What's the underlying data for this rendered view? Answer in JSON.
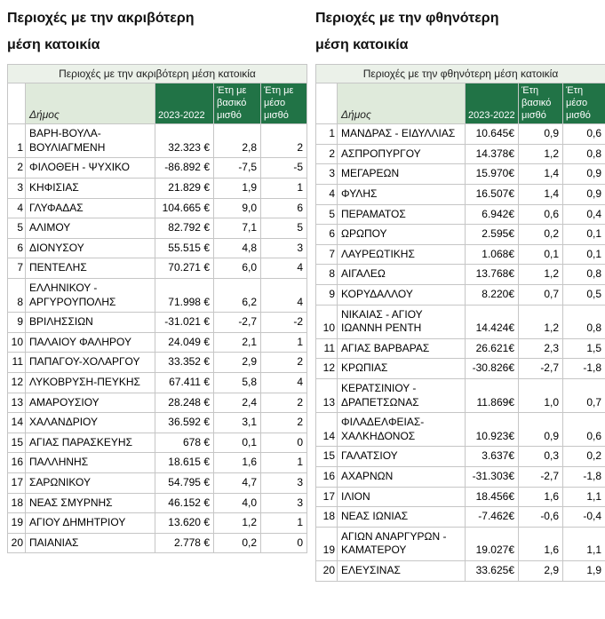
{
  "page": {
    "titles": [
      {
        "lines": [
          "Περιοχές με την ακριβότερη",
          "μέση κατοικία"
        ]
      },
      {
        "lines": [
          "Περιοχές με την φθηνότερη",
          "μέση κατοικία"
        ]
      }
    ]
  },
  "colors": {
    "header_green": "#217346",
    "light_green": "#ebf1e9",
    "dimos_green": "#dfeadb"
  },
  "chart_data": [
    {
      "type": "table",
      "title": "Περιοχές με την ακριβότερη μέση κατοικία",
      "columns": [
        "",
        "Δήμος",
        "2023-2022",
        "Έτη με βασικό μισθό",
        "Έτη με μέσο μισθό"
      ],
      "rows": [
        [
          "1",
          "ΒΑΡΗ-ΒΟΥΛΑ-ΒΟΥΛΙΑΓΜΕΝΗ",
          "32.323 €",
          "2,8",
          "2"
        ],
        [
          "2",
          "ΦΙΛΟΘΕΗ - ΨΥΧΙΚΟ",
          "-86.892 €",
          "-7,5",
          "-5"
        ],
        [
          "3",
          "ΚΗΦΙΣΙΑΣ",
          "21.829 €",
          "1,9",
          "1"
        ],
        [
          "4",
          "ΓΛΥΦΑΔΑΣ",
          "104.665 €",
          "9,0",
          "6"
        ],
        [
          "5",
          "ΑΛΙΜΟΥ",
          "82.792 €",
          "7,1",
          "5"
        ],
        [
          "6",
          "ΔΙΟΝΥΣΟΥ",
          "55.515 €",
          "4,8",
          "3"
        ],
        [
          "7",
          "ΠΕΝΤΕΛΗΣ",
          "70.271 €",
          "6,0",
          "4"
        ],
        [
          "8",
          "ΕΛΛΗΝΙΚΟΥ - ΑΡΓΥΡΟΥΠΟΛΗΣ",
          "71.998 €",
          "6,2",
          "4"
        ],
        [
          "9",
          "ΒΡΙΛΗΣΣΙΩΝ",
          "-31.021 €",
          "-2,7",
          "-2"
        ],
        [
          "10",
          "ΠΑΛΑΙΟΥ ΦΑΛΗΡΟΥ",
          "24.049 €",
          "2,1",
          "1"
        ],
        [
          "11",
          "ΠΑΠΑΓΟΥ-ΧΟΛΑΡΓΟΥ",
          "33.352 €",
          "2,9",
          "2"
        ],
        [
          "12",
          "ΛΥΚΟΒΡΥΣΗ-ΠΕΥΚΗΣ",
          "67.411 €",
          "5,8",
          "4"
        ],
        [
          "13",
          "ΑΜΑΡΟΥΣΙΟΥ",
          "28.248 €",
          "2,4",
          "2"
        ],
        [
          "14",
          "ΧΑΛΑΝΔΡΙΟΥ",
          "36.592 €",
          "3,1",
          "2"
        ],
        [
          "15",
          "ΑΓΙΑΣ ΠΑΡΑΣΚΕΥΗΣ",
          "678 €",
          "0,1",
          "0"
        ],
        [
          "16",
          "ΠΑΛΛΗΝΗΣ",
          "18.615 €",
          "1,6",
          "1"
        ],
        [
          "17",
          "ΣΑΡΩΝΙΚΟΥ",
          "54.795 €",
          "4,7",
          "3"
        ],
        [
          "18",
          "ΝΕΑΣ ΣΜΥΡΝΗΣ",
          "46.152 €",
          "4,0",
          "3"
        ],
        [
          "19",
          "ΑΓΙΟΥ ΔΗΜΗΤΡΙΟΥ",
          "13.620 €",
          "1,2",
          "1"
        ],
        [
          "20",
          "ΠΑΙΑΝΙΑΣ",
          "2.778 €",
          "0,2",
          "0"
        ]
      ]
    },
    {
      "type": "table",
      "title": "Περιοχές με την φθηνότερη μέση κατοικία",
      "columns": [
        "",
        "Δήμος",
        "2023-2022",
        "Έτη βασικό μισθό",
        "Έτη μέσο μισθό"
      ],
      "rows": [
        [
          "1",
          "ΜΑΝΔΡΑΣ - ΕΙΔΥΛΛΙΑΣ",
          "10.645€",
          "0,9",
          "0,6"
        ],
        [
          "2",
          "ΑΣΠΡΟΠΥΡΓΟΥ",
          "14.378€",
          "1,2",
          "0,8"
        ],
        [
          "3",
          "ΜΕΓΑΡΕΩΝ",
          "15.970€",
          "1,4",
          "0,9"
        ],
        [
          "4",
          "ΦΥΛΗΣ",
          "16.507€",
          "1,4",
          "0,9"
        ],
        [
          "5",
          "ΠΕΡΑΜΑΤΟΣ",
          "6.942€",
          "0,6",
          "0,4"
        ],
        [
          "6",
          "ΩΡΩΠΟΥ",
          "2.595€",
          "0,2",
          "0,1"
        ],
        [
          "7",
          "ΛΑΥΡΕΩΤΙΚΗΣ",
          "1.068€",
          "0,1",
          "0,1"
        ],
        [
          "8",
          "ΑΙΓΑΛΕΩ",
          "13.768€",
          "1,2",
          "0,8"
        ],
        [
          "9",
          "ΚΟΡΥΔΑΛΛΟΥ",
          "8.220€",
          "0,7",
          "0,5"
        ],
        [
          "10",
          "ΝΙΚΑΙΑΣ - ΑΓΙΟΥ ΙΩΑΝΝΗ ΡΕΝΤΗ",
          "14.424€",
          "1,2",
          "0,8"
        ],
        [
          "11",
          "ΑΓΙΑΣ ΒΑΡΒΑΡΑΣ",
          "26.621€",
          "2,3",
          "1,5"
        ],
        [
          "12",
          "ΚΡΩΠΙΑΣ",
          "-30.826€",
          "-2,7",
          "-1,8"
        ],
        [
          "13",
          "ΚΕΡΑΤΣΙΝΙΟΥ - ΔΡΑΠΕΤΣΩΝΑΣ",
          "11.869€",
          "1,0",
          "0,7"
        ],
        [
          "14",
          "ΦΙΛΑΔΕΛΦΕΙΑΣ-ΧΑΛΚΗΔΟΝΟΣ",
          "10.923€",
          "0,9",
          "0,6"
        ],
        [
          "15",
          "ΓΑΛΑΤΣΙΟΥ",
          "3.637€",
          "0,3",
          "0,2"
        ],
        [
          "16",
          "ΑΧΑΡΝΩΝ",
          "-31.303€",
          "-2,7",
          "-1,8"
        ],
        [
          "17",
          "ΙΛΙΟΝ",
          "18.456€",
          "1,6",
          "1,1"
        ],
        [
          "18",
          "ΝΕΑΣ ΙΩΝΙΑΣ",
          "-7.462€",
          "-0,6",
          "-0,4"
        ],
        [
          "19",
          "ΑΓΙΩΝ ΑΝΑΡΓΥΡΩΝ - ΚΑΜΑΤΕΡΟΥ",
          "19.027€",
          "1,6",
          "1,1"
        ],
        [
          "20",
          "ΕΛΕΥΣΙΝΑΣ",
          "33.625€",
          "2,9",
          "1,9"
        ]
      ]
    }
  ]
}
